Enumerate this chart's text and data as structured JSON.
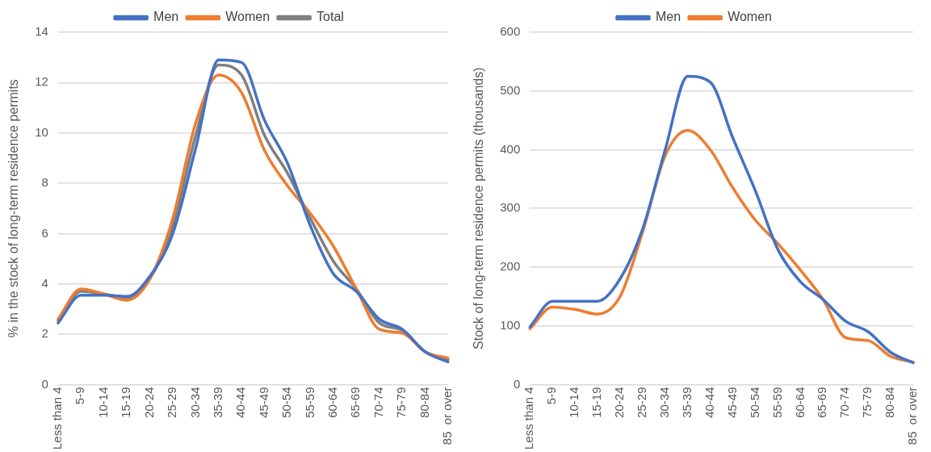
{
  "chart_data": [
    {
      "type": "line",
      "ylabel": "% in the stock of long-term residence permits",
      "categories": [
        "Less than 4",
        "5-9",
        "10-14",
        "15-19",
        "20-24",
        "25-29",
        "30-34",
        "35-39",
        "40-44",
        "45-49",
        "50-54",
        "55-59",
        "60-64",
        "65-69",
        "70-74",
        "75-79",
        "80-84",
        "85  or over"
      ],
      "series": [
        {
          "name": "Men",
          "color": "#4472c4",
          "values": [
            2.45,
            3.55,
            3.55,
            3.5,
            4.3,
            6.0,
            9.4,
            12.9,
            12.8,
            10.5,
            8.8,
            6.3,
            4.4,
            3.7,
            2.6,
            2.2,
            1.3,
            0.9
          ]
        },
        {
          "name": "Women",
          "color": "#ed7d31",
          "values": [
            2.6,
            3.8,
            3.6,
            3.35,
            4.2,
            6.6,
            10.4,
            12.3,
            11.6,
            9.3,
            7.9,
            6.8,
            5.5,
            3.8,
            2.2,
            2.05,
            1.3,
            1.05
          ]
        },
        {
          "name": "Total",
          "color": "#7f7f7f",
          "values": [
            2.55,
            3.7,
            3.6,
            3.45,
            4.2,
            6.3,
            9.9,
            12.7,
            12.3,
            9.9,
            8.4,
            6.6,
            4.9,
            3.8,
            2.45,
            2.15,
            1.3,
            1.0
          ]
        }
      ],
      "ylim": [
        0,
        14
      ],
      "yticks": [
        0,
        2,
        4,
        6,
        8,
        10,
        12,
        14
      ],
      "grid": "y",
      "legend": "top",
      "marker": "none",
      "line_style": "solid"
    },
    {
      "type": "line",
      "ylabel": "Stock of long-term residence permits (thousands)",
      "categories": [
        "Less than 4",
        "5-9",
        "10-14",
        "15-19",
        "20-24",
        "25-29",
        "30-34",
        "35-39",
        "40-44",
        "45-49",
        "50-54",
        "55-59",
        "60-64",
        "65-69",
        "70-74",
        "75-79",
        "80-84",
        "85  or over"
      ],
      "series": [
        {
          "name": "Men",
          "color": "#4472c4",
          "values": [
            98,
            142,
            142,
            142,
            180,
            265,
            400,
            525,
            515,
            420,
            330,
            230,
            175,
            145,
            108,
            90,
            55,
            37
          ]
        },
        {
          "name": "Women",
          "color": "#ed7d31",
          "values": [
            95,
            132,
            128,
            120,
            150,
            260,
            390,
            433,
            400,
            335,
            280,
            240,
            195,
            145,
            80,
            75,
            48,
            38
          ]
        }
      ],
      "ylim": [
        0,
        600
      ],
      "yticks": [
        0,
        100,
        200,
        300,
        400,
        500,
        600
      ],
      "grid": "y",
      "legend": "top",
      "marker": "none",
      "line_style": "solid"
    }
  ]
}
